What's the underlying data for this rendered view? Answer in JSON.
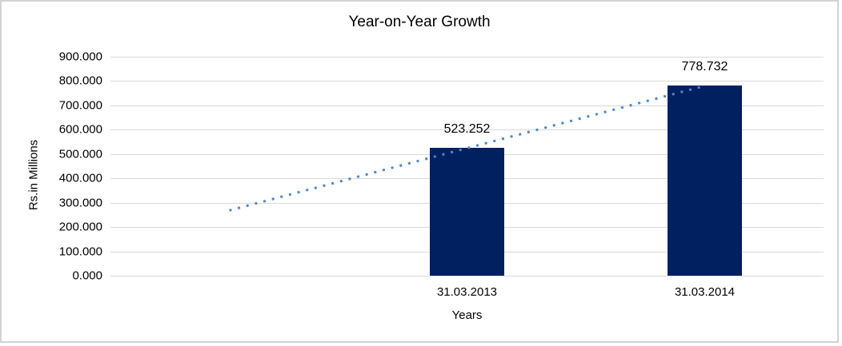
{
  "frame": {
    "background": "#ffffff",
    "border_color": "#d2d2d2"
  },
  "chart_data": {
    "type": "bar",
    "title": "Year-on-Year Growth",
    "xlabel": "Years",
    "ylabel": "Rs.in Millions",
    "categories": [
      "31.03.2013",
      "31.03.2014"
    ],
    "values": [
      523.252,
      778.732
    ],
    "data_labels": [
      "523.252",
      "778.732"
    ],
    "ylim": [
      0,
      900
    ],
    "ytick_step": 100,
    "ytick_labels": [
      "0.000",
      "100.000",
      "200.000",
      "300.000",
      "400.000",
      "500.000",
      "600.000",
      "700.000",
      "800.000",
      "900.000"
    ],
    "grid": true,
    "legend": "none",
    "bar_color": "#002060",
    "gridline_color": "#d9d9d9",
    "trendline": {
      "type": "linear",
      "style": "dotted",
      "color": "#4E87C8",
      "extends_back_periods": 1,
      "start_value": 267.772,
      "end_value": 778.732
    }
  }
}
